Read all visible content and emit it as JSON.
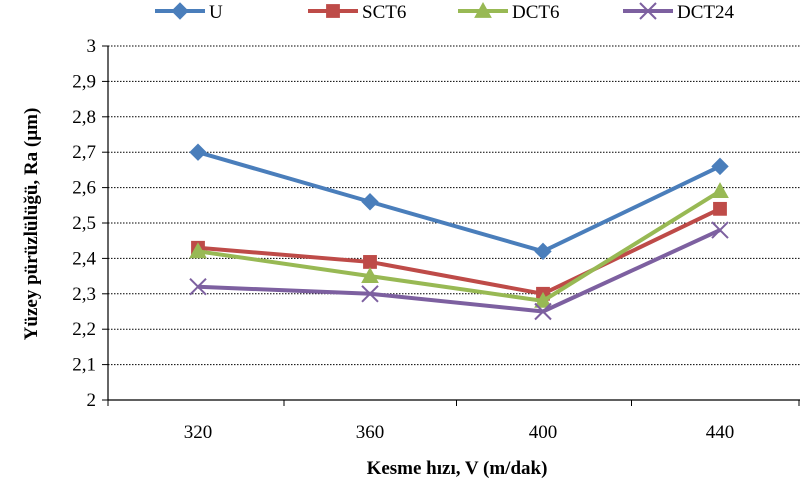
{
  "chart_data": {
    "type": "line",
    "categories": [
      "320",
      "360",
      "400",
      "440"
    ],
    "series": [
      {
        "name": "U",
        "color": "#4a7ebb",
        "marker": "diamond",
        "values": [
          2.7,
          2.56,
          2.42,
          2.66
        ]
      },
      {
        "name": "SCT6",
        "color": "#be4b48",
        "marker": "square",
        "values": [
          2.43,
          2.39,
          2.3,
          2.54
        ]
      },
      {
        "name": "DCT6",
        "color": "#98b954",
        "marker": "triangle",
        "values": [
          2.42,
          2.35,
          2.28,
          2.59
        ]
      },
      {
        "name": "DCT24",
        "color": "#7d60a0",
        "marker": "x",
        "values": [
          2.32,
          2.3,
          2.25,
          2.48
        ]
      }
    ],
    "xlabel": "Kesme hızı, V (m/dak)",
    "ylabel": "Yüzey pürüzlülüğü, Ra (µm)",
    "ylim": [
      2,
      3
    ],
    "yticks": [
      "2",
      "2,1",
      "2,2",
      "2,3",
      "2,4",
      "2,5",
      "2,6",
      "2,7",
      "2,8",
      "2,9",
      "3"
    ],
    "grid": true,
    "legend_position": "top"
  }
}
